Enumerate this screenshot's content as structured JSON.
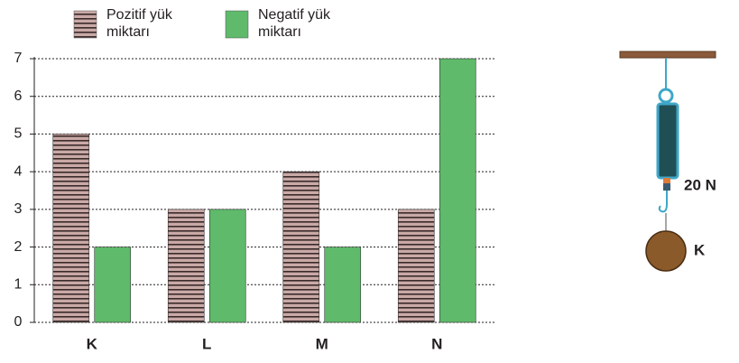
{
  "chart_data": {
    "type": "bar",
    "categories": [
      "K",
      "L",
      "M",
      "N"
    ],
    "series": [
      {
        "name": "Pozitif yük miktarı",
        "color": "#c9a9a6",
        "pattern": "horizontal-lines",
        "values": [
          5,
          3,
          4,
          3
        ]
      },
      {
        "name": "Negatif yük miktarı",
        "color": "#5fba6b",
        "values": [
          2,
          3,
          2,
          7
        ]
      }
    ],
    "ylim": [
      0,
      7
    ],
    "yticks": [
      0,
      1,
      2,
      3,
      4,
      5,
      6,
      7
    ],
    "grid": true
  },
  "diagram": {
    "force_label": "20 N",
    "object_label": "K"
  }
}
